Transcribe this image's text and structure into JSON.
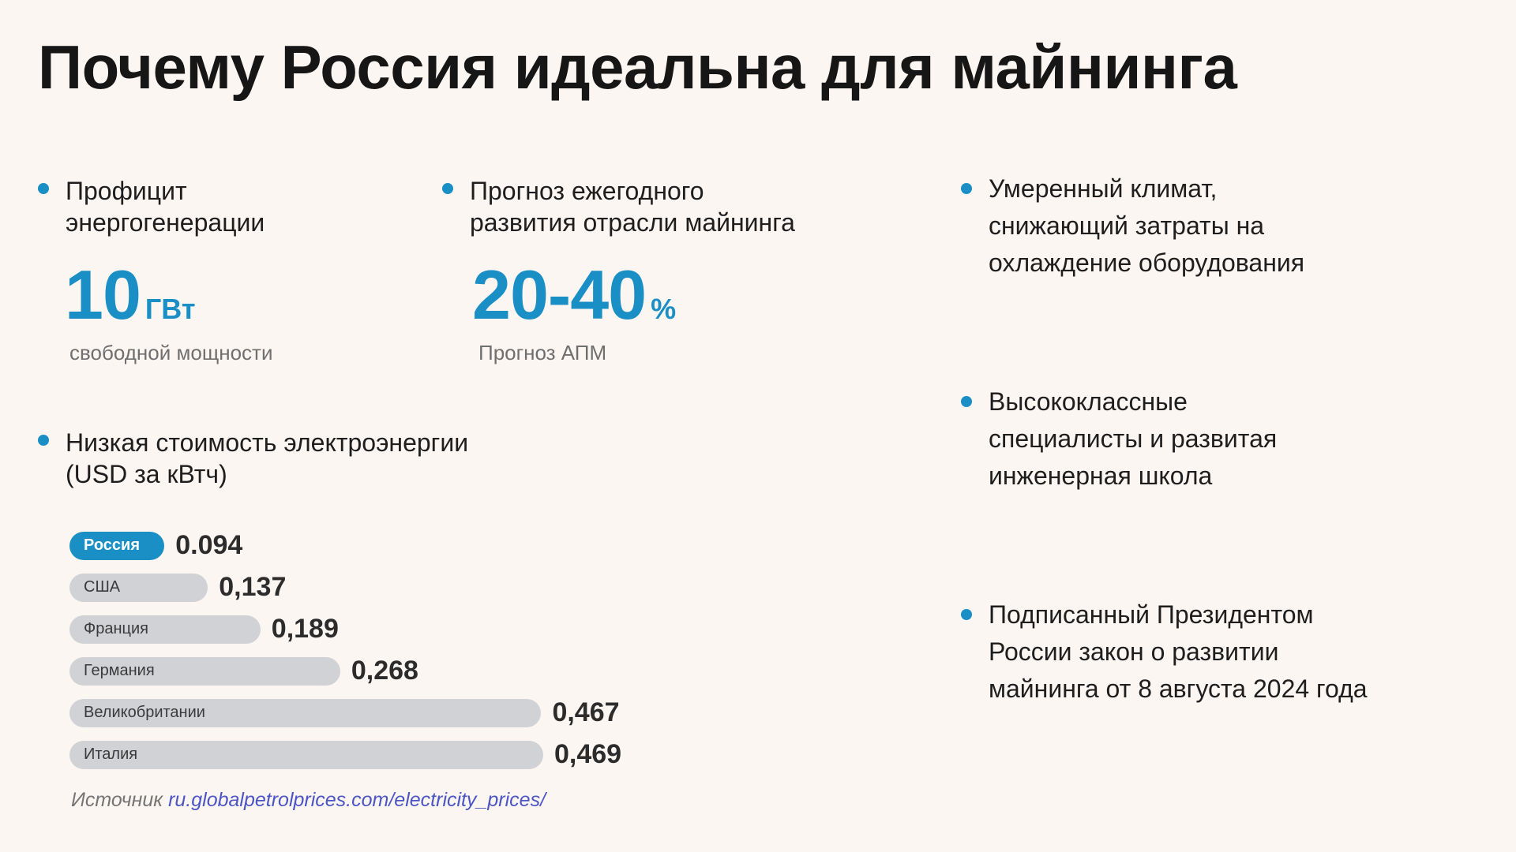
{
  "title": "Почему Россия идеальна для майнинга",
  "colors": {
    "accent": "#1a8fc6",
    "bar_grey": "#d0d2d6",
    "background": "#fcf6f2",
    "link": "#4b55c4"
  },
  "energy_surplus": {
    "label_line1": "Профицит",
    "label_line2": "энергогенерации",
    "value": "10",
    "unit": "ГВт",
    "caption": "свободной мощности"
  },
  "forecast": {
    "label_line1": "Прогноз ежегодного",
    "label_line2": "развития отрасли майнинга",
    "value": "20-40",
    "unit": "%",
    "caption": "Прогноз АПМ"
  },
  "right_bullets": [
    {
      "lines": [
        "Умеренный климат,",
        "снижающий затраты на",
        "охлаждение оборудования"
      ]
    },
    {
      "lines": [
        "Высококлассные",
        "специалисты и развитая",
        "инженерная школа"
      ]
    },
    {
      "lines": [
        "Подписанный Президентом",
        "России закон о развитии",
        "майнинга от 8 августа 2024 года"
      ]
    }
  ],
  "cost": {
    "label_line1": "Низкая стоимость электроэнергии",
    "label_line2": "(USD за кВтч)"
  },
  "chart_data": {
    "type": "bar",
    "orientation": "horizontal",
    "categories": [
      "Россия",
      "США",
      "Франция",
      "Германия",
      "Великобритании",
      "Италия"
    ],
    "values": [
      0.094,
      0.137,
      0.189,
      0.268,
      0.467,
      0.469
    ],
    "value_labels": [
      "0.094",
      "0,137",
      "0,189",
      "0,268",
      "0,467",
      "0,469"
    ],
    "highlighted": "Россия"
  },
  "source": {
    "prefix": "Источник ",
    "link_text": "ru.globalpetrolprices.com/electricity_prices/"
  }
}
